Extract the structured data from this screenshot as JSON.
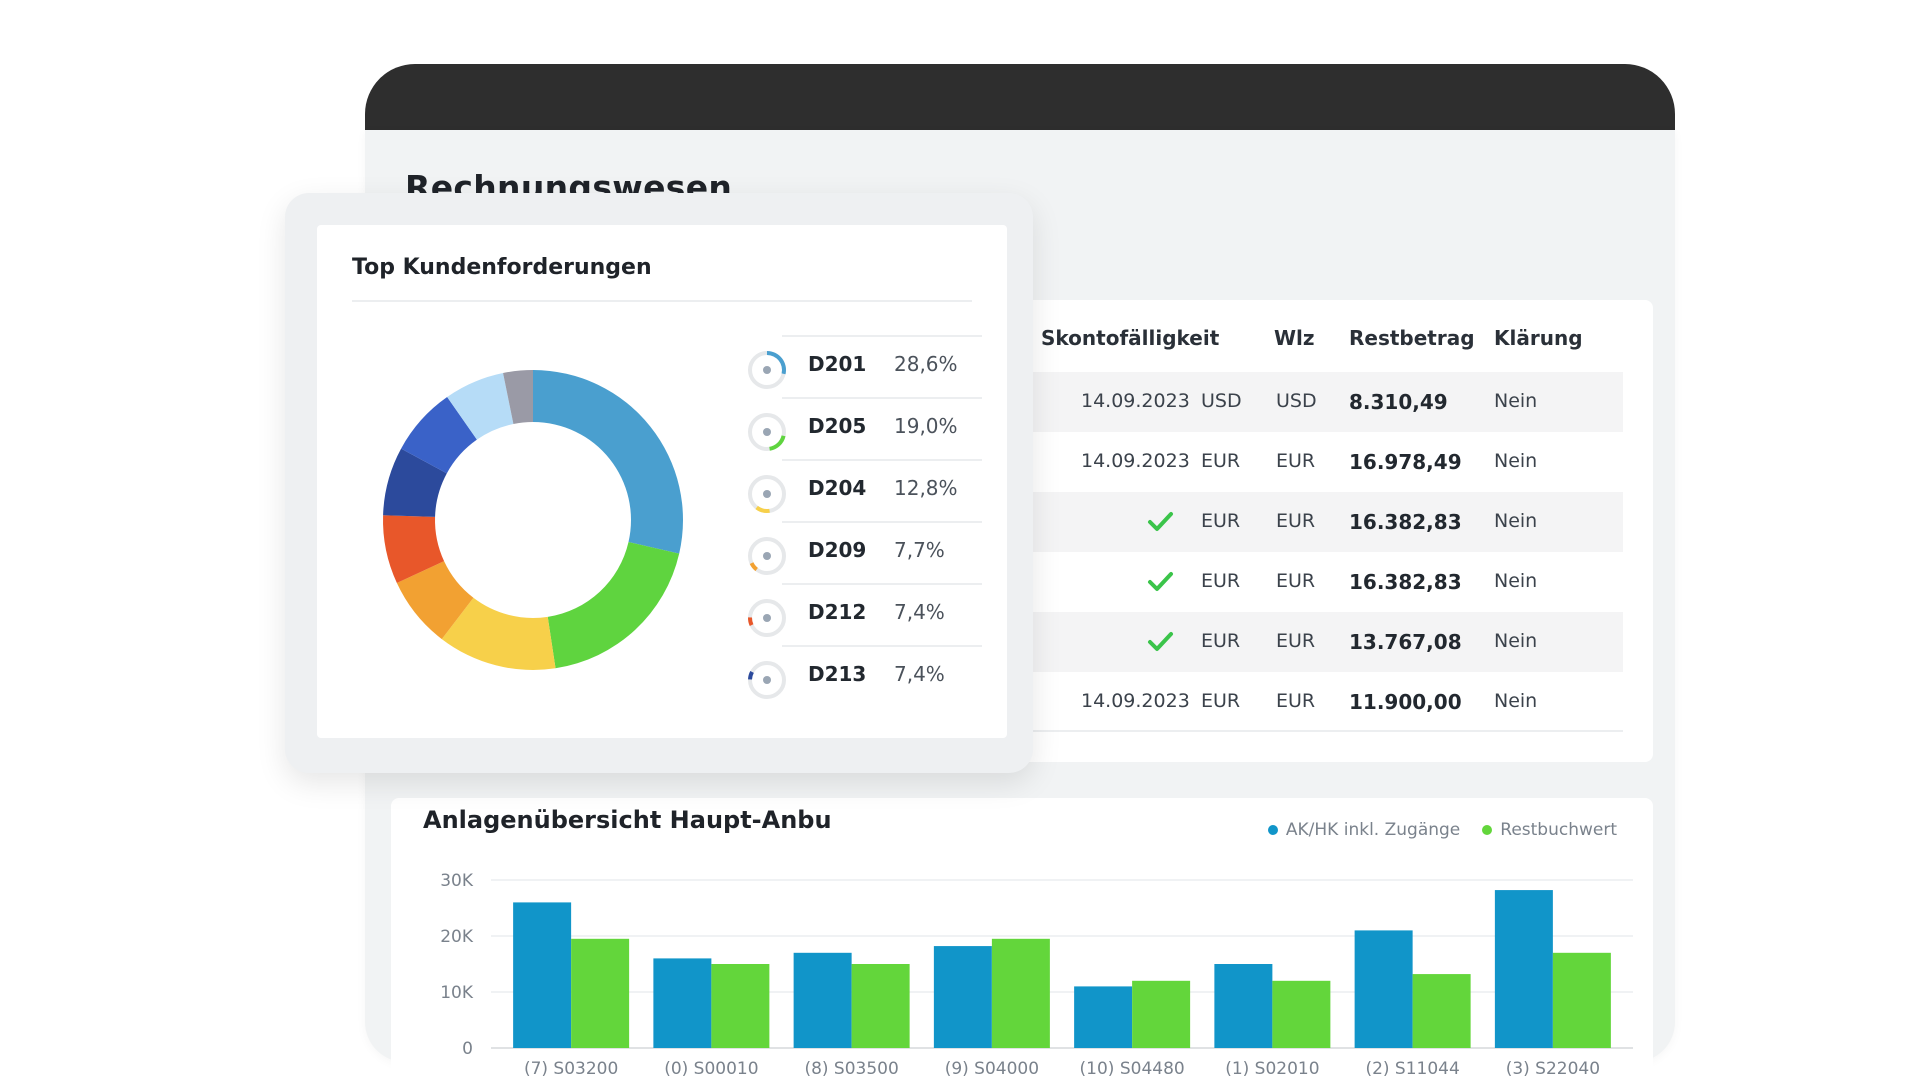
{
  "window": {
    "title": "Rechnungswesen"
  },
  "table": {
    "headers": {
      "skonto": "Skontofälligkeit",
      "wlz": "Wlz",
      "restbetrag": "Restbetrag",
      "klaerung": "Klärung"
    },
    "rows": [
      {
        "skonto": "14.09.2023",
        "currency": "USD",
        "wlz": "USD",
        "restbetrag": "8.310,49",
        "klaerung": "Nein",
        "checked": false
      },
      {
        "skonto": "14.09.2023",
        "currency": "EUR",
        "wlz": "EUR",
        "restbetrag": "16.978,49",
        "klaerung": "Nein",
        "checked": false
      },
      {
        "skonto": "",
        "currency": "EUR",
        "wlz": "EUR",
        "restbetrag": "16.382,83",
        "klaerung": "Nein",
        "checked": true
      },
      {
        "skonto": "",
        "currency": "EUR",
        "wlz": "EUR",
        "restbetrag": "16.382,83",
        "klaerung": "Nein",
        "checked": true
      },
      {
        "skonto": "",
        "currency": "EUR",
        "wlz": "EUR",
        "restbetrag": "13.767,08",
        "klaerung": "Nein",
        "checked": true
      },
      {
        "skonto": "14.09.2023",
        "currency": "EUR",
        "wlz": "EUR",
        "restbetrag": "11.900,00",
        "klaerung": "Nein",
        "checked": false
      }
    ]
  },
  "card": {
    "title": "Top Kundenforderungen",
    "legend": [
      {
        "code": "D201",
        "pct": "28,6%",
        "color": "#4a9fcf"
      },
      {
        "code": "D205",
        "pct": "19,0%",
        "color": "#5fd43f"
      },
      {
        "code": "D204",
        "pct": "12,8%",
        "color": "#f7d04a"
      },
      {
        "code": "D209",
        "pct": "7,7%",
        "color": "#f2a132"
      },
      {
        "code": "D212",
        "pct": "7,4%",
        "color": "#e8572a"
      },
      {
        "code": "D213",
        "pct": "7,4%",
        "color": "#2c4a9c"
      }
    ]
  },
  "donut_data": {
    "type": "pie",
    "slices": [
      {
        "label": "D201",
        "value": 28.6,
        "color": "#4a9fcf"
      },
      {
        "label": "D205",
        "value": 19.0,
        "color": "#5fd43f"
      },
      {
        "label": "D204",
        "value": 12.8,
        "color": "#f7d04a"
      },
      {
        "label": "D209",
        "value": 7.7,
        "color": "#f2a132"
      },
      {
        "label": "D212",
        "value": 7.4,
        "color": "#e8572a"
      },
      {
        "label": "D213",
        "value": 7.4,
        "color": "#2c4a9c"
      },
      {
        "label": "",
        "value": 7.4,
        "color": "#3a62c8"
      },
      {
        "label": "",
        "value": 6.5,
        "color": "#b6dcf7"
      },
      {
        "label": "",
        "value": 3.2,
        "color": "#9a9aa6"
      }
    ]
  },
  "chart_data": {
    "type": "bar",
    "title": "Anlagenübersicht Haupt-Anbu",
    "categories": [
      "(7) S03200",
      "(0) S00010",
      "(8) S03500",
      "(9) S04000",
      "(10) S04480",
      "(1) S02010",
      "(2) S11044",
      "(3) S22040"
    ],
    "series": [
      {
        "name": "AK/HK inkl. Zugänge",
        "color": "#1195c9",
        "values": [
          26000,
          16000,
          17000,
          18200,
          11000,
          15000,
          21000,
          28200
        ]
      },
      {
        "name": "Restbuchwert",
        "color": "#63d63b",
        "values": [
          19500,
          15000,
          15000,
          19500,
          12000,
          12000,
          13200,
          17000
        ]
      }
    ],
    "yticks": [
      "0",
      "10K",
      "20K",
      "30K"
    ],
    "ylim": [
      0,
      30000
    ],
    "grid": true,
    "legend_position": "top-right"
  }
}
